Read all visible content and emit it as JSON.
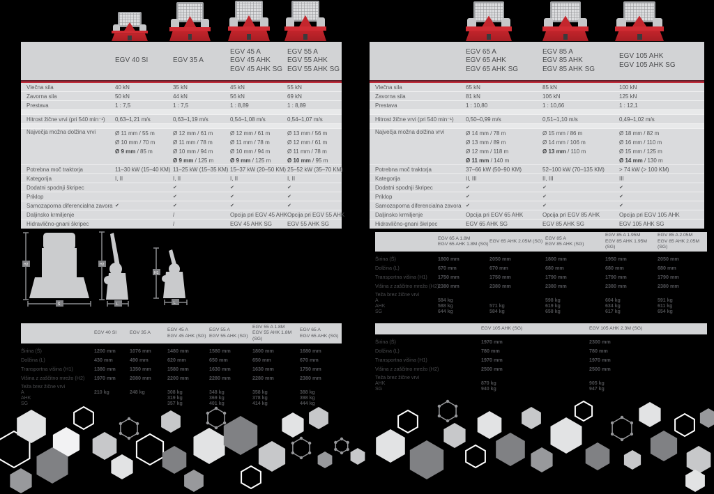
{
  "colors": {
    "accent_red": "#c4232e",
    "table_header_bg": "#d2d3d5",
    "row_bg": "#dadbdd",
    "row_separator": "#f0f0f1",
    "spacer_bg": "#e8e9ea",
    "text_dark": "#58595b",
    "winch_red": "#c9262d",
    "hex_dark": "#808184",
    "hex_light": "#d2d3d5"
  },
  "diagram_labels": {
    "front_height": "H2",
    "front_width": "Š",
    "side_height": "H2",
    "side_length": "L",
    "side2_height": "H1",
    "side2_length": "L"
  },
  "spec_table_left": {
    "columns": [
      [
        "EGV 40 SI"
      ],
      [
        "EGV 35 A"
      ],
      [
        "EGV 45 A",
        "EGV 45 AHK",
        "EGV 45 AHK SG"
      ],
      [
        "EGV 55 A",
        "EGV 55 AHK",
        "EGV 55 AHK SG"
      ]
    ],
    "rows": [
      {
        "label": "Vlečna sila",
        "values": [
          "40 kN",
          "35 kN",
          "45 kN",
          "55 kN"
        ]
      },
      {
        "label": "Zavorna sila",
        "values": [
          "50 kN",
          "44 kN",
          "56 kN",
          "69 kN"
        ]
      },
      {
        "label": "Prestava",
        "values": [
          "1 : 7,5",
          "1 : 7,5",
          "1 : 8,89",
          "1 : 8,89"
        ]
      },
      {
        "spacer": true
      },
      {
        "label": "Hitrost žične vrvi  (pri 540 min⁻¹)",
        "values": [
          "0,63–1,21 m/s",
          "0,63–1,19 m/s",
          "0,54–1,08 m/s",
          "0,54–1,07 m/s"
        ]
      },
      {
        "spacer": true
      },
      {
        "label": "Največja možna dolžina vrvi",
        "multiline": true,
        "values": [
          [
            "Ø 11 mm / 55 m",
            "Ø 10 mm / 70 m",
            "Ø 9 mm / 85 m"
          ],
          [
            "Ø 12 mm / 61 m",
            "Ø 11 mm / 78 m",
            "Ø 10 mm / 94 m",
            "Ø 9 mm / 125 m"
          ],
          [
            "Ø 12 mm / 61 m",
            "Ø 11 mm / 78 m",
            "Ø 10 mm / 94 m",
            "Ø 9 mm / 125 m"
          ],
          [
            "Ø 13 mm / 56 m",
            "Ø 12 mm / 61 m",
            "Ø 11 mm / 78 m",
            "Ø 10 mm / 95 m"
          ]
        ]
      },
      {
        "label": "Potrebna moč traktorja",
        "values": [
          "11–30 kW (15–40 KM)",
          "11–25 kW (15–35 KM)",
          "15–37 kW (20–50 KM)",
          "25–52 kW (35–70 KM)"
        ]
      },
      {
        "label": "Kategorija",
        "values": [
          "I, II",
          "I, II",
          "I, II",
          "I, II"
        ]
      },
      {
        "label": "Dodatni spodnji škripec",
        "values": [
          "",
          "✔",
          "✔",
          "✔"
        ]
      },
      {
        "label": "Priklop",
        "values": [
          "",
          "✔",
          "✔",
          "✔"
        ]
      },
      {
        "label": "Samozaporna diferencialna zavora",
        "values": [
          "✔",
          "✔",
          "✔",
          "✔"
        ]
      },
      {
        "label": "Daljinsko krmiljenje",
        "values": [
          "",
          "/",
          "Opcija pri EGV 45 AHK",
          "Opcija pri EGV 55 AHK"
        ]
      },
      {
        "label": "Hidravlično-gnani škripec",
        "values": [
          "",
          "/",
          "EGV 45 AHK SG",
          "EGV 55 AHK SG"
        ]
      }
    ]
  },
  "spec_table_right": {
    "columns": [
      [
        "EGV 65 A",
        "EGV 65 AHK",
        "EGV 65 AHK SG"
      ],
      [
        "EGV 85 A",
        "EGV 85 AHK",
        "EGV 85 AHK SG"
      ],
      [
        "EGV 105 AHK",
        "EGV 105 AHK SG"
      ]
    ],
    "rows": [
      {
        "label": "Vlečna sila",
        "values": [
          "65 kN",
          "85 kN",
          "100 kN"
        ]
      },
      {
        "label": "Zavorna sila",
        "values": [
          "81 kN",
          "106 kN",
          "125 kN"
        ]
      },
      {
        "label": "Prestava",
        "values": [
          "1 : 10,80",
          "1 : 10,66",
          "1 : 12,1"
        ]
      },
      {
        "spacer": true
      },
      {
        "label": "Hitrost žične vrvi  (pri 540 min⁻¹)",
        "values": [
          "0,50–0,99 m/s",
          "0,51–1,10 m/s",
          "0,49–1,02 m/s"
        ]
      },
      {
        "spacer": true
      },
      {
        "label": "Največja možna dolžina vrvi",
        "multiline": true,
        "values": [
          [
            "Ø 14 mm / 78 m",
            "Ø 13 mm / 89 m",
            "Ø 12 mm / 118 m",
            "Ø 11 mm / 140 m"
          ],
          [
            "Ø 15 mm / 86 m",
            "Ø 14 mm / 106 m",
            "Ø 13 mm / 110 m"
          ],
          [
            "Ø 18 mm / 82 m",
            "Ø 16 mm / 110 m",
            "Ø 15 mm / 125 m",
            "Ø 14 mm / 130 m"
          ]
        ]
      },
      {
        "label": "Potrebna moč traktorja",
        "values": [
          "37–66 kW (50–90 KM)",
          "52–100 kW (70–135 KM)",
          "> 74 kW (> 100 KM)"
        ]
      },
      {
        "label": "Kategorija",
        "values": [
          "II, III",
          "II, III",
          "III"
        ]
      },
      {
        "label": "Dodatni spodnji škripec",
        "values": [
          "✔",
          "✔",
          "✔"
        ]
      },
      {
        "label": "Priklop",
        "values": [
          "✔",
          "✔",
          "✔"
        ]
      },
      {
        "label": "Samozaporna diferencialna zavora",
        "values": [
          "✔",
          "✔",
          "✔"
        ]
      },
      {
        "label": "Daljinsko krmiljenje",
        "values": [
          "Opcija pri EGV 65 AHK",
          "Opcija pri EGV 85 AHK",
          "Opcija pri EGV 105 AHK"
        ]
      },
      {
        "label": "Hidravlično-gnani škripec",
        "values": [
          "EGV 65 AHK SG",
          "EGV 85 AHK SG",
          "EGV 105 AHK SG"
        ]
      }
    ]
  },
  "dim_table_egv65_85": {
    "columns": [
      [
        "EGV 65 A 1.8M",
        "EGV 65 AHK 1.8M (SG)"
      ],
      [
        "EGV 65 AHK 2.05M (SG)"
      ],
      [
        "EGV 85 A",
        "EGV 85 AHK (SG)"
      ],
      [
        "EGV 85 A 1.95M",
        "EGV 85 AHK 1.95M (SG)"
      ],
      [
        "EGV 85 A 2.05M",
        "EGV 85 AHK 2.05M (SG)"
      ]
    ],
    "rows": [
      {
        "label": "Širina (Š)",
        "values": [
          "1800 mm",
          "2050 mm",
          "1800 mm",
          "1950 mm",
          "2050 mm"
        ]
      },
      {
        "label": "Dolžina (L)",
        "values": [
          "670 mm",
          "670 mm",
          "680 mm",
          "680 mm",
          "680 mm"
        ]
      },
      {
        "label": "Transportna višina (H1)",
        "values": [
          "1750 mm",
          "1750 mm",
          "1790 mm",
          "1790 mm",
          "1790 mm"
        ]
      },
      {
        "label": "Višina z zaščitno mrežo (H2)",
        "values": [
          "2380 mm",
          "2380 mm",
          "2380 mm",
          "2380 mm",
          "2380 mm"
        ]
      },
      {
        "label": "Teža brez žične vrvi",
        "group": true
      },
      {
        "label": "A",
        "sub": true,
        "values": [
          "584 kg",
          "",
          "598 kg",
          "604 kg",
          "591 kg"
        ]
      },
      {
        "label": "AHK",
        "sub": true,
        "values": [
          "588 kg",
          "571 kg",
          "619 kg",
          "634 kg",
          "611 kg"
        ]
      },
      {
        "label": "SG",
        "sub": true,
        "values": [
          "644 kg",
          "584 kg",
          "658 kg",
          "617 kg",
          "654 kg"
        ]
      }
    ]
  },
  "dim_table_egv40_65": {
    "columns": [
      [
        "EGV 40 SI"
      ],
      [
        "EGV 35 A"
      ],
      [
        "EGV 45 A",
        "EGV 45 AHK (SG)"
      ],
      [
        "EGV 55 A",
        "EGV 55 AHK (SG)"
      ],
      [
        "EGV 55 A 1.8M",
        "EGV 55 AHK 1.8M (SG)"
      ],
      [
        "EGV 65 A",
        "EGV 65 AHK (SG)"
      ]
    ],
    "rows": [
      {
        "label": "Širina (Š)",
        "values": [
          "1200 mm",
          "1076 mm",
          "1480 mm",
          "1580 mm",
          "1800 mm",
          "1680 mm"
        ]
      },
      {
        "label": "Dolžina (L)",
        "values": [
          "430 mm",
          "490 mm",
          "620 mm",
          "650 mm",
          "650 mm",
          "670 mm"
        ]
      },
      {
        "label": "Transportna višina (H1)",
        "values": [
          "1380 mm",
          "1350 mm",
          "1580 mm",
          "1630 mm",
          "1630 mm",
          "1750 mm"
        ]
      },
      {
        "label": "Višina z zaščitno mrežo (H2)",
        "values": [
          "1970 mm",
          "2080 mm",
          "2200 mm",
          "2280 mm",
          "2280 mm",
          "2380 mm"
        ]
      },
      {
        "label": "Teža brez žične vrvi",
        "group": true
      },
      {
        "label": "A",
        "sub": true,
        "values": [
          "210 kg",
          "248 kg",
          "308 kg",
          "348 kg",
          "358 kg",
          "388 kg"
        ]
      },
      {
        "label": "AHK",
        "sub": true,
        "values": [
          "",
          "",
          "319 kg",
          "369 kg",
          "378 kg",
          "398 kg"
        ]
      },
      {
        "label": "SG",
        "sub": true,
        "values": [
          "",
          "",
          "357 kg",
          "401 kg",
          "414 kg",
          "444 kg"
        ]
      }
    ]
  },
  "dim_table_egv105": {
    "columns": [
      [
        "EGV 105 AHK (SG)"
      ],
      [
        "EGV 105 AHK 2.3M (SG)"
      ]
    ],
    "rows": [
      {
        "label": "Širina (Š)",
        "values": [
          "1970 mm",
          "2300 mm"
        ]
      },
      {
        "label": "Dolžina (L)",
        "values": [
          "780 mm",
          "780 mm"
        ]
      },
      {
        "label": "Transportna višina (H1)",
        "values": [
          "1970 mm",
          "1970 mm"
        ]
      },
      {
        "label": "Višina z zaščitno mrežo (H2)",
        "values": [
          "2500 mm",
          "2500 mm"
        ]
      },
      {
        "label": "Teža brez žične vrvi",
        "group": true
      },
      {
        "label": "AHK",
        "sub": true,
        "values": [
          "870 kg",
          "905 kg"
        ]
      },
      {
        "label": "SG",
        "sub": true,
        "values": [
          "940 kg",
          "947 kg"
        ]
      }
    ]
  }
}
